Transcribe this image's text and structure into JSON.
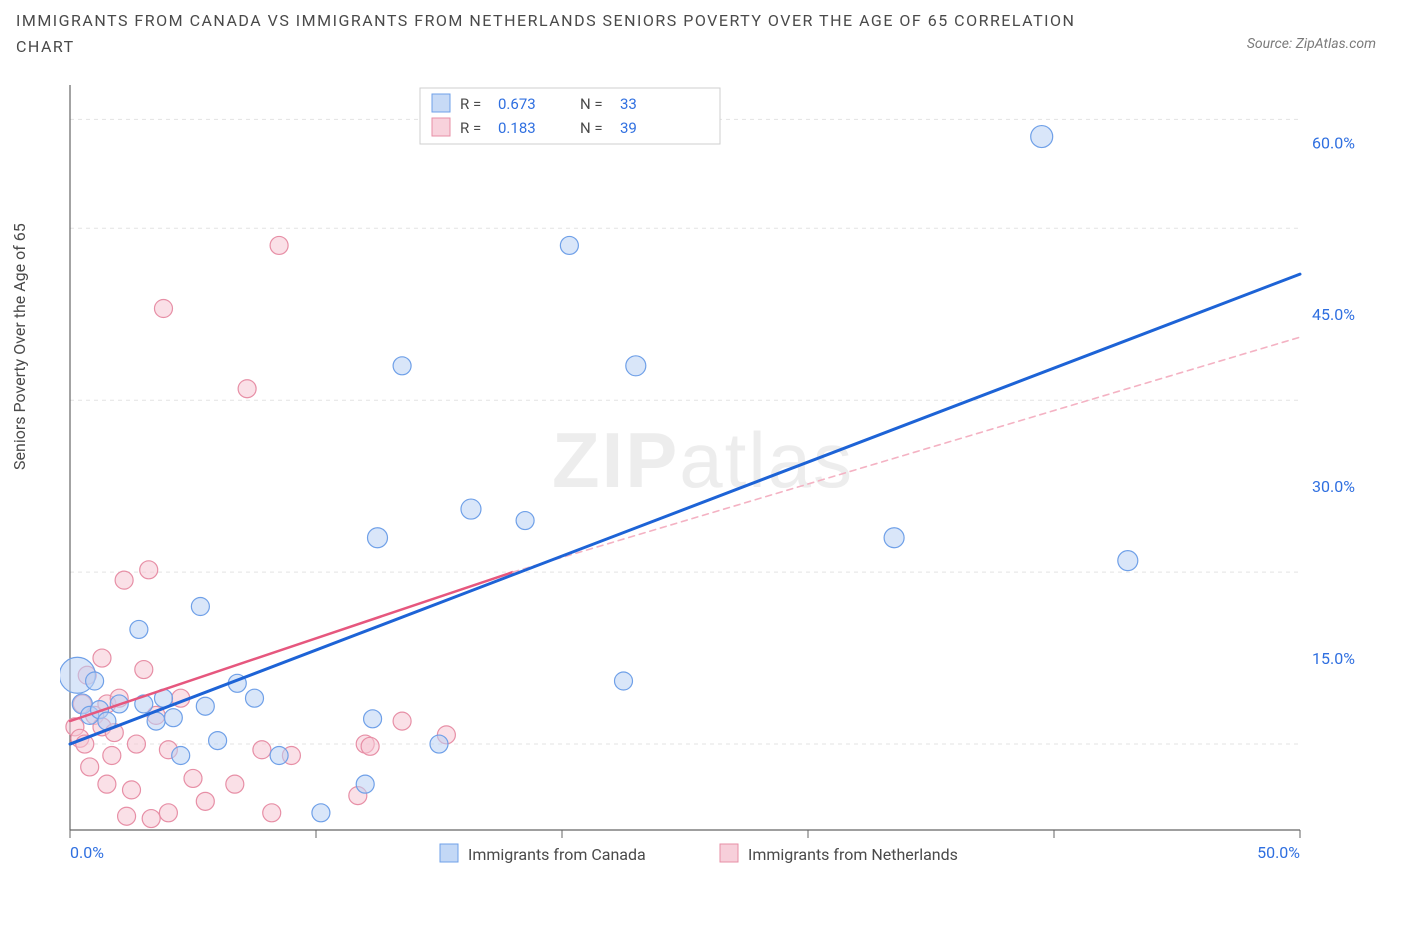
{
  "title": "IMMIGRANTS FROM CANADA VS IMMIGRANTS FROM NETHERLANDS SENIORS POVERTY OVER THE AGE OF 65 CORRELATION CHART",
  "source_prefix": "Source: ",
  "source": "ZipAtlas.com",
  "ylabel": "Seniors Poverty Over the Age of 65",
  "watermark_a": "ZIP",
  "watermark_b": "atlas",
  "chart": {
    "type": "scatter",
    "background_color": "#ffffff",
    "grid_color": "#e3e3e3",
    "axis_color": "#666666",
    "xlim": [
      0,
      50
    ],
    "ylim": [
      0,
      65
    ],
    "xticks": [
      0,
      10,
      20,
      30,
      40,
      50
    ],
    "xtick_labels": [
      "0.0%",
      "",
      "",
      "",
      "",
      "50.0%"
    ],
    "yticks_right": [
      15,
      30,
      45,
      60
    ],
    "ytick_labels": [
      "15.0%",
      "30.0%",
      "45.0%",
      "60.0%"
    ],
    "gridlines_y": [
      7.5,
      22.5,
      37.5,
      52.5,
      62
    ],
    "marker_radius": 9,
    "marker_stroke_width": 1.2,
    "series": [
      {
        "name": "Immigrants from Canada",
        "fill": "#b9d1f4",
        "stroke": "#6fa0e8",
        "fill_opacity": 0.55,
        "R": "0.673",
        "N": "33",
        "points": [
          [
            0.3,
            13.5,
            18
          ],
          [
            0.5,
            11,
            10
          ],
          [
            0.8,
            10,
            9
          ],
          [
            1.2,
            10.5,
            9
          ],
          [
            1.0,
            13,
            9
          ],
          [
            1.5,
            9.5,
            9
          ],
          [
            2.0,
            11,
            9
          ],
          [
            2.8,
            17.5,
            9
          ],
          [
            3.0,
            11,
            9
          ],
          [
            3.5,
            9.5,
            9
          ],
          [
            3.8,
            11.5,
            9
          ],
          [
            4.2,
            9.8,
            9
          ],
          [
            4.5,
            6.5,
            9
          ],
          [
            5.3,
            19.5,
            9
          ],
          [
            5.5,
            10.8,
            9
          ],
          [
            6.8,
            12.8,
            9
          ],
          [
            6.0,
            7.8,
            9
          ],
          [
            8.5,
            6.5,
            9
          ],
          [
            10.2,
            1.5,
            9
          ],
          [
            12.0,
            4.0,
            9
          ],
          [
            12.3,
            9.7,
            9
          ],
          [
            12.5,
            25.5,
            10
          ],
          [
            13.5,
            40.5,
            9
          ],
          [
            16.3,
            28.0,
            10
          ],
          [
            18.5,
            27.0,
            9
          ],
          [
            20.3,
            51.0,
            9
          ],
          [
            22.5,
            13.0,
            9
          ],
          [
            23.0,
            40.5,
            10
          ],
          [
            33.5,
            25.5,
            10
          ],
          [
            39.5,
            60.5,
            11
          ],
          [
            43.0,
            23.5,
            10
          ],
          [
            15.0,
            7.5,
            9
          ],
          [
            7.5,
            11.5,
            9
          ]
        ],
        "trend": {
          "x1": 0,
          "y1": 7.5,
          "x2": 50,
          "y2": 48.5,
          "color": "#1d63d6",
          "width": 3
        }
      },
      {
        "name": "Immigrants from Netherlands",
        "fill": "#f6c7d3",
        "stroke": "#e78fa6",
        "fill_opacity": 0.55,
        "R": "0.183",
        "N": "39",
        "points": [
          [
            0.2,
            9.0,
            9
          ],
          [
            0.4,
            8.0,
            9
          ],
          [
            0.5,
            11.0,
            9
          ],
          [
            0.6,
            7.5,
            9
          ],
          [
            0.7,
            13.5,
            9
          ],
          [
            0.8,
            5.5,
            9
          ],
          [
            1.0,
            10.0,
            9
          ],
          [
            1.3,
            9.0,
            9
          ],
          [
            1.3,
            15.0,
            9
          ],
          [
            1.5,
            11.0,
            9
          ],
          [
            1.5,
            4.0,
            9
          ],
          [
            1.7,
            6.5,
            9
          ],
          [
            1.8,
            8.5,
            9
          ],
          [
            2.0,
            11.5,
            9
          ],
          [
            2.2,
            21.8,
            9
          ],
          [
            2.3,
            1.2,
            9
          ],
          [
            2.5,
            3.5,
            9
          ],
          [
            2.7,
            7.5,
            9
          ],
          [
            3.0,
            14.0,
            9
          ],
          [
            3.2,
            22.7,
            9
          ],
          [
            3.3,
            1.0,
            9
          ],
          [
            3.5,
            10.0,
            9
          ],
          [
            3.8,
            45.5,
            9
          ],
          [
            4.0,
            7.0,
            9
          ],
          [
            4.0,
            1.5,
            9
          ],
          [
            4.5,
            11.5,
            9
          ],
          [
            5.0,
            4.5,
            9
          ],
          [
            5.5,
            2.5,
            9
          ],
          [
            6.7,
            4.0,
            9
          ],
          [
            7.2,
            38.5,
            9
          ],
          [
            7.8,
            7.0,
            9
          ],
          [
            8.2,
            1.5,
            9
          ],
          [
            8.5,
            51.0,
            9
          ],
          [
            9.0,
            6.5,
            9
          ],
          [
            11.7,
            3.0,
            9
          ],
          [
            12.0,
            7.5,
            9
          ],
          [
            12.2,
            7.3,
            9
          ],
          [
            13.5,
            9.5,
            9
          ],
          [
            15.3,
            8.3,
            9
          ]
        ],
        "trend_solid": {
          "x1": 0,
          "y1": 9.5,
          "x2": 18,
          "y2": 22.5,
          "color": "#e6577e",
          "width": 2.5
        },
        "trend_dash": {
          "x1": 18,
          "y1": 22.5,
          "x2": 50,
          "y2": 43.0,
          "color": "#f4b2c3",
          "width": 1.6,
          "dash": "6,5"
        }
      }
    ],
    "legend_top": {
      "box_stroke": "#cfcfcf",
      "text_color": "#4a4a4a",
      "value_color": "#2f6fe0",
      "R_label": "R =",
      "N_label": "N ="
    },
    "legend_bottom": {
      "labels": [
        "Immigrants from Canada",
        "Immigrants from Netherlands"
      ]
    }
  }
}
